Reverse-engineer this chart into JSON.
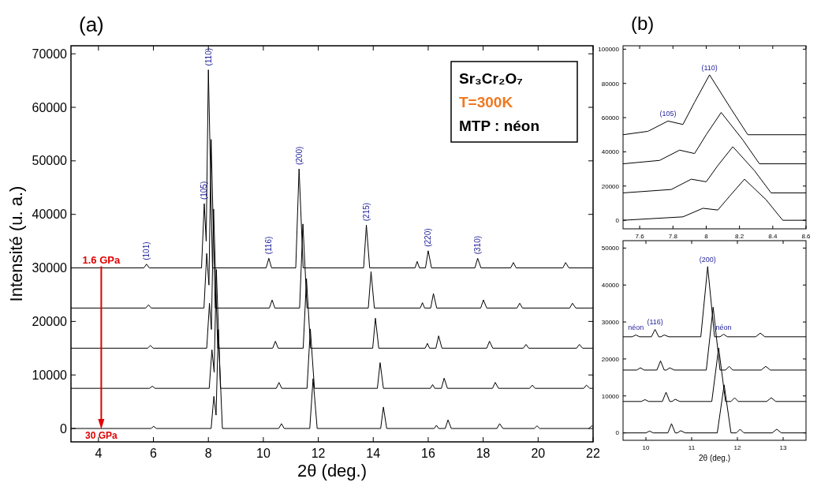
{
  "chart_data": [
    {
      "type": "line",
      "title": "(a)",
      "xlabel": "2θ (deg.)",
      "ylabel": "Intensité (u. a.)",
      "xlim": [
        3,
        22
      ],
      "xticks": [
        4,
        6,
        8,
        10,
        12,
        14,
        16,
        18,
        20,
        22
      ],
      "ylim": [
        -2500,
        71500
      ],
      "yticks": [
        0,
        10000,
        20000,
        30000,
        40000,
        50000,
        60000,
        70000
      ],
      "grid": false,
      "marker": "none",
      "line_style": "solid",
      "annotations": [
        {
          "text": "1.6 GPa",
          "x": 3,
          "y": 30000
        },
        {
          "text": "30 GPa",
          "x": 3,
          "y": 0
        },
        {
          "text": "(101)",
          "x": 5.75,
          "y": 30700
        },
        {
          "text": "(105)",
          "x": 7.85,
          "y": 42000
        },
        {
          "text": "(110)",
          "x": 8.0,
          "y": 67000
        },
        {
          "text": "(116)",
          "x": 10.2,
          "y": 31800
        },
        {
          "text": "(200)",
          "x": 11.3,
          "y": 48500
        },
        {
          "text": "(215)",
          "x": 13.75,
          "y": 38000
        },
        {
          "text": "(220)",
          "x": 16.0,
          "y": 33200
        },
        {
          "text": "(310)",
          "x": 17.8,
          "y": 31800
        },
        "Sr₃Cr₂O₇",
        "T=300K",
        "MTP : néon"
      ],
      "series": [
        {
          "color": "#000000",
          "x": [
            3,
            5.65,
            5.75,
            5.85,
            7.75,
            7.85,
            7.92,
            8.0,
            8.15,
            10.1,
            10.2,
            10.3,
            11.18,
            11.3,
            11.45,
            13.65,
            13.75,
            13.87,
            15.52,
            15.6,
            15.68,
            15.9,
            16.0,
            16.12,
            17.7,
            17.8,
            17.92,
            19.0,
            19.1,
            19.2,
            20.9,
            21.0,
            21.12,
            22
          ],
          "values": [
            30000,
            30000,
            30700,
            30000,
            30000,
            42000,
            35000,
            67000,
            30000,
            30000,
            31800,
            30000,
            30000,
            48500,
            30000,
            30000,
            38000,
            30000,
            30000,
            31200,
            30000,
            30000,
            33200,
            30000,
            30000,
            31800,
            30000,
            30000,
            31000,
            30000,
            30000,
            31000,
            30000,
            30000
          ]
        },
        {
          "color": "#000000",
          "x": [
            3,
            5.72,
            5.82,
            5.92,
            7.84,
            7.94,
            8.02,
            8.1,
            8.25,
            10.22,
            10.32,
            10.42,
            11.32,
            11.44,
            11.59,
            13.82,
            13.92,
            14.04,
            15.71,
            15.79,
            15.87,
            16.09,
            16.19,
            16.31,
            17.91,
            18.01,
            18.13,
            19.23,
            19.33,
            19.43,
            21.15,
            21.25,
            21.37,
            22
          ],
          "values": [
            22500,
            22500,
            23100,
            22500,
            22500,
            32700,
            26800,
            54000,
            22500,
            22500,
            24000,
            22500,
            22500,
            38200,
            22500,
            22500,
            29300,
            22500,
            22500,
            23500,
            22500,
            22500,
            25200,
            22500,
            22500,
            24000,
            22500,
            22500,
            23400,
            22500,
            22500,
            23400,
            22500,
            22500
          ]
        },
        {
          "color": "#000000",
          "x": [
            3,
            5.79,
            5.89,
            5.99,
            7.94,
            8.04,
            8.11,
            8.19,
            8.34,
            10.34,
            10.44,
            10.54,
            11.45,
            11.57,
            11.72,
            13.98,
            14.08,
            14.2,
            15.89,
            15.97,
            16.05,
            16.28,
            16.38,
            16.5,
            18.13,
            18.23,
            18.35,
            19.46,
            19.56,
            19.66,
            21.4,
            21.5,
            21.62,
            22
          ],
          "values": [
            15000,
            15000,
            15500,
            15000,
            15000,
            23400,
            18500,
            41000,
            15000,
            15000,
            16300,
            15000,
            15000,
            28000,
            15000,
            15000,
            20600,
            15000,
            15000,
            15900,
            15000,
            15000,
            17300,
            15000,
            15000,
            16300,
            15000,
            15000,
            15700,
            15000,
            15000,
            15700,
            15000,
            15000
          ]
        },
        {
          "color": "#000000",
          "x": [
            3,
            5.86,
            5.96,
            6.06,
            8.03,
            8.13,
            8.21,
            8.29,
            8.44,
            10.47,
            10.57,
            10.67,
            11.59,
            11.71,
            11.86,
            14.15,
            14.25,
            14.37,
            16.08,
            16.16,
            16.24,
            16.48,
            16.58,
            16.7,
            18.34,
            18.44,
            18.56,
            19.69,
            19.79,
            19.89,
            21.66,
            21.76,
            21.88,
            22
          ],
          "values": [
            7500,
            7500,
            7900,
            7500,
            7500,
            14700,
            10500,
            29700,
            7500,
            7500,
            8600,
            7500,
            7500,
            18600,
            7500,
            7500,
            12300,
            7500,
            7500,
            8200,
            7500,
            7500,
            9400,
            7500,
            7500,
            8600,
            7500,
            7500,
            8100,
            7500,
            7500,
            8100,
            7500,
            7500
          ]
        },
        {
          "color": "#000000",
          "x": [
            3,
            5.91,
            6.01,
            6.11,
            8.1,
            8.2,
            8.28,
            8.36,
            8.51,
            10.56,
            10.66,
            10.76,
            11.69,
            11.81,
            11.96,
            14.27,
            14.37,
            14.49,
            16.22,
            16.3,
            16.38,
            16.62,
            16.72,
            16.84,
            18.5,
            18.6,
            18.72,
            19.86,
            19.96,
            20.06,
            21.85,
            21.95,
            22
          ],
          "values": [
            0,
            0,
            400,
            0,
            0,
            6000,
            2500,
            18500,
            0,
            0,
            900,
            0,
            0,
            9300,
            0,
            0,
            4000,
            0,
            0,
            600,
            0,
            0,
            1600,
            0,
            0,
            900,
            0,
            0,
            500,
            0,
            0,
            500,
            300
          ]
        }
      ]
    },
    {
      "type": "line",
      "title": "(b)",
      "xlim": [
        7.5,
        8.6
      ],
      "xticks": [
        7.6,
        7.8,
        8.0,
        8.2,
        8.4,
        8.6
      ],
      "ylim": [
        -5000,
        102000
      ],
      "yticks": [
        0,
        20000,
        40000,
        60000,
        80000,
        100000
      ],
      "grid": false,
      "marker": "none",
      "line_style": "solid",
      "annotations": [
        {
          "text": "(105)",
          "x": 7.77,
          "y": 58000
        },
        {
          "text": "(110)",
          "x": 8.02,
          "y": 85000
        }
      ],
      "series": [
        {
          "color": "#000000",
          "x": [
            7.5,
            7.65,
            7.77,
            7.86,
            7.93,
            8.02,
            8.15,
            8.25,
            8.6
          ],
          "values": [
            50000,
            52000,
            58000,
            56000,
            69000,
            85000,
            65000,
            50000,
            50000
          ]
        },
        {
          "color": "#000000",
          "x": [
            7.5,
            7.72,
            7.84,
            7.93,
            8.0,
            8.09,
            8.22,
            8.32,
            8.6
          ],
          "values": [
            33000,
            35000,
            41000,
            39000,
            50000,
            63000,
            47000,
            33000,
            33000
          ]
        },
        {
          "color": "#000000",
          "x": [
            7.5,
            7.79,
            7.91,
            8.0,
            8.07,
            8.16,
            8.29,
            8.39,
            8.6
          ],
          "values": [
            16000,
            18000,
            24000,
            22500,
            32000,
            43000,
            29000,
            16000,
            16000
          ]
        },
        {
          "color": "#000000",
          "x": [
            7.5,
            7.86,
            7.98,
            8.07,
            8.14,
            8.23,
            8.36,
            8.46,
            8.6
          ],
          "values": [
            0,
            2000,
            7000,
            6000,
            14000,
            24000,
            12000,
            0,
            0
          ]
        }
      ]
    },
    {
      "type": "line",
      "xlabel": "2θ (deg.)",
      "xlim": [
        9.5,
        13.5
      ],
      "xticks": [
        10,
        11,
        12,
        13
      ],
      "ylim": [
        -2000,
        52000
      ],
      "yticks": [
        0,
        10000,
        20000,
        30000,
        40000,
        50000
      ],
      "grid": false,
      "marker": "none",
      "line_style": "solid",
      "annotations": [
        {
          "text": "néon",
          "x": 9.78,
          "y": 26500
        },
        {
          "text": "néon",
          "x": 11.7,
          "y": 26700
        },
        {
          "text": "(116)",
          "x": 10.2,
          "y": 28000
        },
        {
          "text": "(200)",
          "x": 11.35,
          "y": 45000
        }
      ],
      "series": [
        {
          "color": "#000000",
          "x": [
            9.5,
            9.7,
            9.78,
            9.86,
            10.12,
            10.2,
            10.28,
            10.33,
            10.4,
            10.5,
            11.2,
            11.35,
            11.5,
            11.62,
            11.7,
            11.78,
            12.4,
            12.5,
            12.6,
            13.5
          ],
          "values": [
            26000,
            26000,
            26500,
            26000,
            26000,
            28000,
            26000,
            26000,
            26500,
            26000,
            26000,
            45000,
            26000,
            26000,
            26700,
            26000,
            26000,
            27000,
            26000,
            26000
          ]
        },
        {
          "color": "#000000",
          "x": [
            9.5,
            9.8,
            9.88,
            9.96,
            10.24,
            10.32,
            10.4,
            10.45,
            10.52,
            10.62,
            11.32,
            11.47,
            11.62,
            11.74,
            11.82,
            11.9,
            12.52,
            12.62,
            12.72,
            13.5
          ],
          "values": [
            17000,
            17000,
            17600,
            17000,
            17000,
            19500,
            17000,
            17000,
            17600,
            17000,
            17000,
            34000,
            17000,
            17000,
            18000,
            17000,
            17000,
            18000,
            17000,
            17000
          ]
        },
        {
          "color": "#000000",
          "x": [
            9.5,
            9.9,
            9.98,
            10.06,
            10.36,
            10.44,
            10.52,
            10.57,
            10.64,
            10.74,
            11.44,
            11.59,
            11.74,
            11.86,
            11.94,
            12.02,
            12.64,
            12.74,
            12.84,
            13.5
          ],
          "values": [
            8500,
            8500,
            9000,
            8500,
            8500,
            11000,
            8500,
            8500,
            9100,
            8500,
            8500,
            23000,
            8500,
            8500,
            9500,
            8500,
            8500,
            9500,
            8500,
            8500
          ]
        },
        {
          "color": "#000000",
          "x": [
            9.5,
            10.0,
            10.08,
            10.16,
            10.48,
            10.56,
            10.64,
            10.69,
            10.76,
            10.86,
            11.56,
            11.71,
            11.86,
            11.98,
            12.06,
            12.14,
            12.76,
            12.86,
            12.96,
            13.5
          ],
          "values": [
            0,
            0,
            500,
            0,
            0,
            2500,
            0,
            0,
            600,
            0,
            0,
            13000,
            0,
            0,
            1000,
            0,
            0,
            1000,
            0,
            0
          ]
        }
      ]
    }
  ]
}
